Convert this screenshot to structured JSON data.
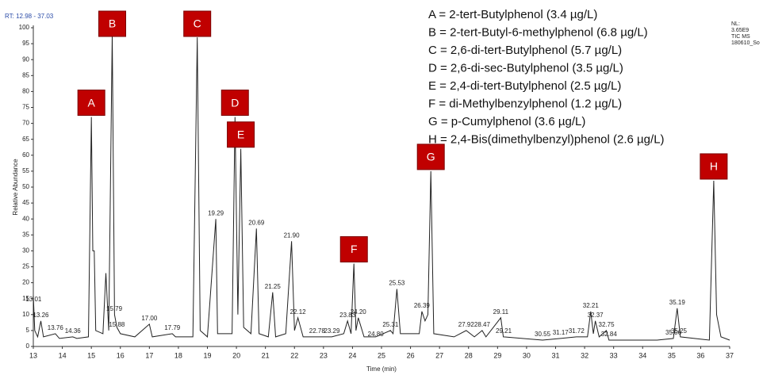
{
  "chart_data": {
    "type": "line",
    "range_label": "RT: 12.98 - 37.03",
    "info_lines": [
      "NL:",
      "3.65E9",
      "TIC MS",
      "180610_So"
    ],
    "ylabel": "Relative Abundance",
    "xlabel": "Time (min)",
    "xlim": [
      13,
      37
    ],
    "xticks": [
      13,
      14,
      15,
      16,
      17,
      18,
      19,
      20,
      21,
      22,
      23,
      24,
      25,
      26,
      27,
      28,
      29,
      30,
      31,
      32,
      33,
      34,
      35,
      36,
      37
    ],
    "ylim": [
      0,
      100
    ],
    "yticks": [
      0,
      5,
      10,
      15,
      20,
      25,
      30,
      35,
      40,
      45,
      50,
      55,
      60,
      65,
      70,
      75,
      80,
      85,
      90,
      95,
      100
    ],
    "series": [
      {
        "color": "#222222",
        "x": [
          13.0,
          13.05,
          13.15,
          13.26,
          13.35,
          13.76,
          13.9,
          14.36,
          14.5,
          14.9,
          15.0,
          15.05,
          15.1,
          15.15,
          15.4,
          15.5,
          15.6,
          15.72,
          15.8,
          15.88,
          16.0,
          16.5,
          17.0,
          17.1,
          17.79,
          17.9,
          18.5,
          18.65,
          18.75,
          19.0,
          19.29,
          19.35,
          19.85,
          19.95,
          20.05,
          20.15,
          20.25,
          20.5,
          20.69,
          20.78,
          21.1,
          21.25,
          21.35,
          21.7,
          21.9,
          22.0,
          22.12,
          22.3,
          22.78,
          23.29,
          23.7,
          23.83,
          23.95,
          24.05,
          24.12,
          24.2,
          24.4,
          24.8,
          25.31,
          25.4,
          25.53,
          25.65,
          26.3,
          26.39,
          26.5,
          26.6,
          26.7,
          26.8,
          27.5,
          27.92,
          28.2,
          28.47,
          28.6,
          29.11,
          29.2,
          30.55,
          31.17,
          31.72,
          32.1,
          32.21,
          32.3,
          32.37,
          32.5,
          32.75,
          32.84,
          34.5,
          35.06,
          35.19,
          35.3,
          36.3,
          36.45,
          36.55,
          36.7,
          37.0
        ],
        "values": [
          16,
          5,
          3,
          8,
          3,
          4,
          2.5,
          3,
          2.5,
          3,
          72,
          30,
          30,
          5,
          4,
          23,
          5,
          98,
          10,
          6,
          4,
          3,
          7,
          3,
          4,
          3,
          3,
          97,
          5,
          3,
          40,
          4,
          4,
          72,
          10,
          62,
          6,
          4,
          37,
          4,
          3,
          17,
          3,
          4,
          33,
          5,
          9,
          3,
          3,
          3,
          4,
          8,
          4,
          26,
          5,
          9,
          3,
          3,
          5,
          4,
          18,
          4,
          4,
          11,
          8,
          10,
          55,
          4,
          3,
          5,
          3,
          5,
          3,
          9,
          3,
          2,
          2.5,
          3,
          3,
          11,
          4,
          8,
          3,
          5,
          2,
          2,
          2.5,
          12,
          3,
          2,
          52,
          10,
          3,
          2
        ]
      }
    ],
    "peak_labels": [
      {
        "x": 13.01,
        "y": 13,
        "label": "13.01"
      },
      {
        "x": 13.26,
        "y": 8,
        "label": "13.26"
      },
      {
        "x": 13.76,
        "y": 4,
        "label": "13.76"
      },
      {
        "x": 14.36,
        "y": 3,
        "label": "14.36"
      },
      {
        "x": 15.79,
        "y": 10,
        "label": "15.79"
      },
      {
        "x": 15.88,
        "y": 5,
        "label": "15.88"
      },
      {
        "x": 17.0,
        "y": 7,
        "label": "17.00"
      },
      {
        "x": 17.79,
        "y": 4,
        "label": "17.79"
      },
      {
        "x": 19.29,
        "y": 40,
        "label": "19.29"
      },
      {
        "x": 20.69,
        "y": 37,
        "label": "20.69"
      },
      {
        "x": 21.25,
        "y": 17,
        "label": "21.25"
      },
      {
        "x": 21.9,
        "y": 33,
        "label": "21.90"
      },
      {
        "x": 22.12,
        "y": 9,
        "label": "22.12"
      },
      {
        "x": 22.78,
        "y": 3,
        "label": "22.78"
      },
      {
        "x": 23.29,
        "y": 3,
        "label": "23.29"
      },
      {
        "x": 23.83,
        "y": 8,
        "label": "23.83"
      },
      {
        "x": 24.2,
        "y": 9,
        "label": "24.20"
      },
      {
        "x": 24.8,
        "y": 2,
        "label": "24.80"
      },
      {
        "x": 25.31,
        "y": 5,
        "label": "25.31"
      },
      {
        "x": 25.53,
        "y": 18,
        "label": "25.53"
      },
      {
        "x": 26.39,
        "y": 11,
        "label": "26.39"
      },
      {
        "x": 27.92,
        "y": 5,
        "label": "27.92"
      },
      {
        "x": 28.47,
        "y": 5,
        "label": "28.47"
      },
      {
        "x": 29.11,
        "y": 9,
        "label": "29.11"
      },
      {
        "x": 29.21,
        "y": 3,
        "label": "29.21"
      },
      {
        "x": 30.55,
        "y": 2,
        "label": "30.55"
      },
      {
        "x": 31.17,
        "y": 2.5,
        "label": "31.17"
      },
      {
        "x": 31.72,
        "y": 3,
        "label": "31.72"
      },
      {
        "x": 32.21,
        "y": 11,
        "label": "32.21"
      },
      {
        "x": 32.37,
        "y": 8,
        "label": "32.37"
      },
      {
        "x": 32.75,
        "y": 5,
        "label": "32.75"
      },
      {
        "x": 32.84,
        "y": 2,
        "label": "32.84"
      },
      {
        "x": 35.06,
        "y": 2.5,
        "label": "35.06"
      },
      {
        "x": 35.19,
        "y": 12,
        "label": "35.19"
      },
      {
        "x": 35.25,
        "y": 3,
        "label": "35.25"
      }
    ],
    "markers": [
      {
        "label": "A",
        "x": 15.0,
        "y": 72
      },
      {
        "label": "B",
        "x": 15.72,
        "y": 98
      },
      {
        "label": "C",
        "x": 18.65,
        "y": 97
      },
      {
        "label": "D",
        "x": 19.95,
        "y": 72
      },
      {
        "label": "E",
        "x": 20.15,
        "y": 62
      },
      {
        "label": "F",
        "x": 24.05,
        "y": 26
      },
      {
        "label": "G",
        "x": 26.7,
        "y": 55
      },
      {
        "label": "H",
        "x": 36.45,
        "y": 52
      }
    ],
    "legend_lines": [
      "A = 2-tert-Butylphenol (3.4 µg/L)",
      "B = 2-tert-Butyl-6-methylphenol (6.8 µg/L)",
      "C = 2,6-di-tert-Butylphenol (5.7 µg/L)",
      "D = 2,6-di-sec-Butylphenol (3.5 µg/L)",
      "E = 2,4-di-tert-Butylphenol (2.5 µg/L)",
      "F = di-Methylbenzylphenol (1.2 µg/L)",
      "G = p-Cumylphenol (3.6 µg/L)",
      "H = 2,4-Bis(dimethylbenzyl)phenol (2.6 µg/L)"
    ]
  }
}
